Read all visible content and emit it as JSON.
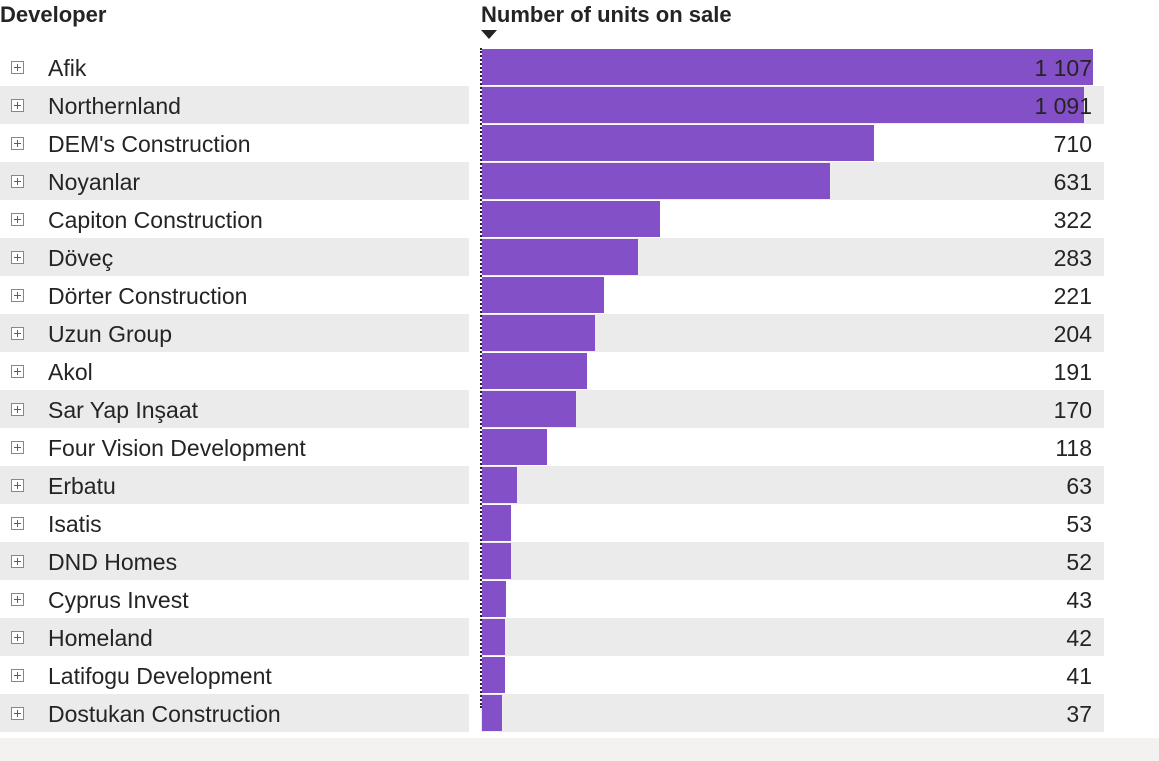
{
  "header": {
    "developer_label": "Developer",
    "value_label": "Number of units on sale",
    "sort_icon": "sort-descending-icon"
  },
  "rows": [
    {
      "name": "Afik",
      "value": 1107,
      "display": "1 107"
    },
    {
      "name": "Northernland",
      "value": 1091,
      "display": "1 091"
    },
    {
      "name": "DEM's Construction",
      "value": 710,
      "display": "710"
    },
    {
      "name": "Noyanlar",
      "value": 631,
      "display": "631"
    },
    {
      "name": "Capiton Construction",
      "value": 322,
      "display": "322"
    },
    {
      "name": "Döveç",
      "value": 283,
      "display": "283"
    },
    {
      "name": "Dörter Construction",
      "value": 221,
      "display": "221"
    },
    {
      "name": "Uzun Group",
      "value": 204,
      "display": "204"
    },
    {
      "name": "Akol",
      "value": 191,
      "display": "191"
    },
    {
      "name": "Sar Yap Inşaat",
      "value": 170,
      "display": "170"
    },
    {
      "name": "Four Vision Development",
      "value": 118,
      "display": "118"
    },
    {
      "name": "Erbatu",
      "value": 63,
      "display": "63"
    },
    {
      "name": "Isatis",
      "value": 53,
      "display": "53"
    },
    {
      "name": "DND Homes",
      "value": 52,
      "display": "52"
    },
    {
      "name": "Cyprus Invest",
      "value": 43,
      "display": "43"
    },
    {
      "name": "Homeland",
      "value": 42,
      "display": "42"
    },
    {
      "name": "Latifogu Development",
      "value": 41,
      "display": "41"
    },
    {
      "name": "Dostukan Construction",
      "value": 37,
      "display": "37"
    }
  ],
  "colors": {
    "bar": "#8350c8",
    "stripe": "#ebebeb",
    "text": "#252423"
  }
}
